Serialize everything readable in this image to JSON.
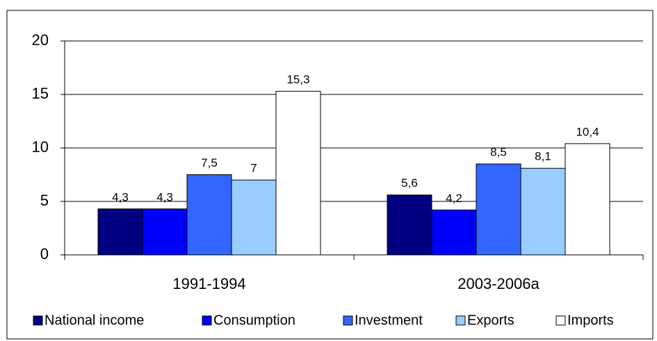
{
  "chart_data": {
    "type": "bar",
    "categories": [
      "1991-1994",
      "2003-2006a"
    ],
    "series": [
      {
        "name": "National income",
        "color": "#000080",
        "values": [
          4.3,
          5.6
        ],
        "value_labels": [
          "4,3",
          "5,6"
        ]
      },
      {
        "name": "Consumption",
        "color": "#0000FF",
        "values": [
          4.3,
          4.2
        ],
        "value_labels": [
          "4,3",
          "4,2"
        ]
      },
      {
        "name": "Investment",
        "color": "#3366FF",
        "values": [
          7.5,
          8.5
        ],
        "value_labels": [
          "7,5",
          "8,5"
        ]
      },
      {
        "name": "Exports",
        "color": "#99CCFF",
        "values": [
          7,
          8.1
        ],
        "value_labels": [
          "7",
          "8,1"
        ]
      },
      {
        "name": "Imports",
        "color": "#FFFFFF",
        "values": [
          15.3,
          10.4
        ],
        "value_labels": [
          "15,3",
          "10,4"
        ]
      }
    ],
    "ylim": [
      0,
      20
    ],
    "yticks": [
      0,
      5,
      10,
      15,
      20
    ],
    "grid": true,
    "legend": "bottom"
  }
}
